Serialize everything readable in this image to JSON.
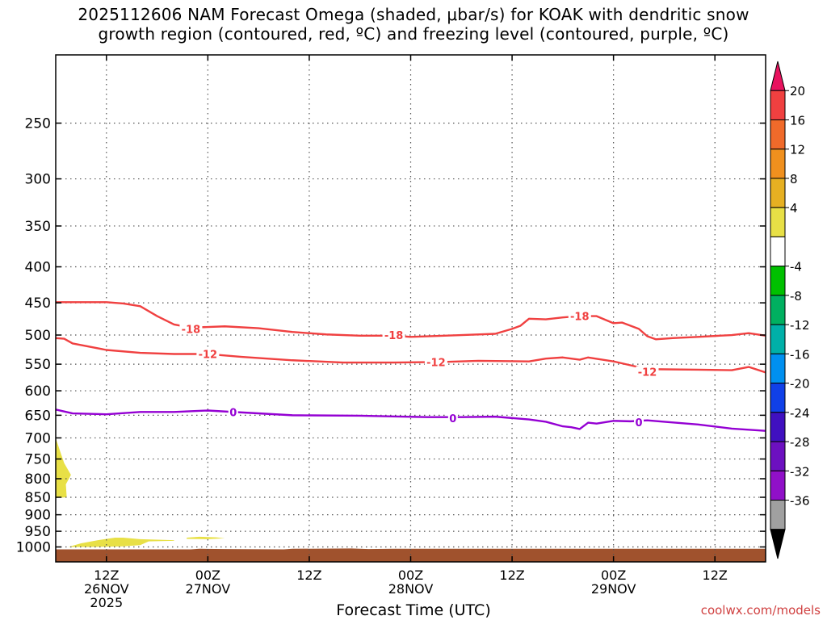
{
  "title_lines": [
    "2025112606 NAM Forecast Omega (shaded, μbar/s) for KOAK with dendritic snow",
    "growth region (contoured, red, ºC) and freezing level (contoured, purple, ºC)"
  ],
  "credit": "coolwx.com/models",
  "chart_data": {
    "type": "contour",
    "xlabel": "Forecast Time (UTC)",
    "x_range_hours": [
      0,
      84
    ],
    "y_scale": "log-pressure",
    "y_range_hpa": [
      1050,
      200
    ],
    "y_ticks": [
      250,
      300,
      350,
      400,
      450,
      500,
      550,
      600,
      650,
      700,
      750,
      800,
      850,
      900,
      950,
      1000
    ],
    "x_ticks": [
      {
        "hour": 6,
        "lines": [
          "12Z",
          "26NOV",
          "2025"
        ]
      },
      {
        "hour": 18,
        "lines": [
          "00Z",
          "27NOV"
        ]
      },
      {
        "hour": 30,
        "lines": [
          "12Z"
        ]
      },
      {
        "hour": 42,
        "lines": [
          "00Z",
          "28NOV"
        ]
      },
      {
        "hour": 54,
        "lines": [
          "12Z"
        ]
      },
      {
        "hour": 66,
        "lines": [
          "00Z",
          "29NOV"
        ]
      },
      {
        "hour": 78,
        "lines": [
          "12Z"
        ]
      }
    ],
    "grid": true,
    "ground_color": "#a0522d",
    "ground_top_hpa": [
      [
        0,
        1008
      ],
      [
        16,
        1008
      ],
      [
        17,
        1006
      ],
      [
        20,
        1007
      ],
      [
        27,
        1008
      ],
      [
        28,
        1006
      ],
      [
        35,
        1005
      ],
      [
        37,
        1007
      ],
      [
        40,
        1006
      ],
      [
        84,
        1006
      ]
    ],
    "contours": [
      {
        "label": "-18",
        "color": "#f04040",
        "label_at": [
          [
            16,
            490
          ],
          [
            40,
            500
          ],
          [
            62,
            470
          ]
        ],
        "points": [
          [
            0,
            449
          ],
          [
            6,
            449
          ],
          [
            8,
            451
          ],
          [
            10,
            455
          ],
          [
            12,
            470
          ],
          [
            14,
            483
          ],
          [
            16,
            488
          ],
          [
            20,
            486
          ],
          [
            24,
            489
          ],
          [
            28,
            495
          ],
          [
            32,
            499
          ],
          [
            36,
            501
          ],
          [
            40,
            501
          ],
          [
            42,
            503
          ],
          [
            48,
            500
          ],
          [
            52,
            498
          ],
          [
            54,
            490
          ],
          [
            55,
            485
          ],
          [
            56,
            474
          ],
          [
            58,
            475
          ],
          [
            60,
            472
          ],
          [
            62,
            470
          ],
          [
            64,
            470
          ],
          [
            66,
            481
          ],
          [
            67,
            480
          ],
          [
            69,
            490
          ],
          [
            70,
            502
          ],
          [
            71,
            507
          ],
          [
            73,
            505
          ],
          [
            76,
            503
          ],
          [
            80,
            500
          ],
          [
            82,
            497
          ],
          [
            84,
            501
          ]
        ]
      },
      {
        "label": "-12",
        "color": "#f04040",
        "label_at": [
          [
            18,
            532
          ],
          [
            45,
            546
          ],
          [
            70,
            564
          ]
        ],
        "points": [
          [
            0,
            505
          ],
          [
            1,
            506
          ],
          [
            2,
            514
          ],
          [
            6,
            525
          ],
          [
            10,
            530
          ],
          [
            14,
            532
          ],
          [
            18,
            532
          ],
          [
            22,
            537
          ],
          [
            28,
            543
          ],
          [
            34,
            547
          ],
          [
            40,
            547
          ],
          [
            46,
            546
          ],
          [
            50,
            544
          ],
          [
            56,
            545
          ],
          [
            58,
            540
          ],
          [
            60,
            538
          ],
          [
            62,
            542
          ],
          [
            63,
            538
          ],
          [
            66,
            545
          ],
          [
            70,
            559
          ],
          [
            76,
            560
          ],
          [
            80,
            561
          ],
          [
            82,
            555
          ],
          [
            84,
            565
          ]
        ]
      },
      {
        "label": "0",
        "color": "#9400d3",
        "label_at": [
          [
            21,
            643
          ],
          [
            47,
            656
          ],
          [
            69,
            665
          ]
        ],
        "points": [
          [
            0,
            638
          ],
          [
            2,
            646
          ],
          [
            6,
            648
          ],
          [
            10,
            643
          ],
          [
            14,
            643
          ],
          [
            18,
            640
          ],
          [
            22,
            644
          ],
          [
            28,
            650
          ],
          [
            36,
            651
          ],
          [
            44,
            654
          ],
          [
            48,
            654
          ],
          [
            52,
            653
          ],
          [
            56,
            659
          ],
          [
            58,
            664
          ],
          [
            60,
            674
          ],
          [
            61,
            676
          ],
          [
            62,
            680
          ],
          [
            63,
            666
          ],
          [
            64,
            668
          ],
          [
            66,
            662
          ],
          [
            68,
            663
          ],
          [
            70,
            661
          ],
          [
            72,
            664
          ],
          [
            76,
            670
          ],
          [
            80,
            679
          ],
          [
            84,
            684
          ]
        ]
      }
    ],
    "shaded_regions": [
      {
        "color": "#e8e046",
        "points": [
          [
            0,
            700
          ],
          [
            0.5,
            730
          ],
          [
            1,
            760
          ],
          [
            1.8,
            790
          ],
          [
            1.2,
            815
          ],
          [
            1.3,
            850
          ],
          [
            0,
            852
          ]
        ]
      },
      {
        "color": "#e8e046",
        "points": [
          [
            1.5,
            1000
          ],
          [
            3,
            988
          ],
          [
            5,
            978
          ],
          [
            7,
            970
          ],
          [
            8,
            970
          ],
          [
            10,
            975
          ],
          [
            14,
            978
          ],
          [
            14,
            980
          ],
          [
            11,
            982
          ],
          [
            10,
            994
          ],
          [
            8,
            998
          ],
          [
            4,
            1000
          ]
        ]
      },
      {
        "color": "#e8e046",
        "points": [
          [
            15.5,
            970
          ],
          [
            17,
            967
          ],
          [
            19,
            969
          ],
          [
            20,
            972
          ],
          [
            18,
            975
          ],
          [
            15.5,
            974
          ]
        ]
      }
    ],
    "colorbar": {
      "labels": [
        "20",
        "16",
        "12",
        "8",
        "4",
        "-4",
        "-8",
        "-12",
        "-16",
        "-20",
        "-24",
        "-28",
        "-32",
        "-36"
      ],
      "colors": [
        "#e8125e",
        "#f04040",
        "#f06a2a",
        "#f0901e",
        "#e6b022",
        "#e8e046",
        "#ffffff",
        "#00c000",
        "#00b060",
        "#00b0a8",
        "#0090f0",
        "#1040e8",
        "#4010c0",
        "#6c10c0",
        "#9010c8",
        "#a0a0a0",
        "#000000"
      ]
    }
  }
}
